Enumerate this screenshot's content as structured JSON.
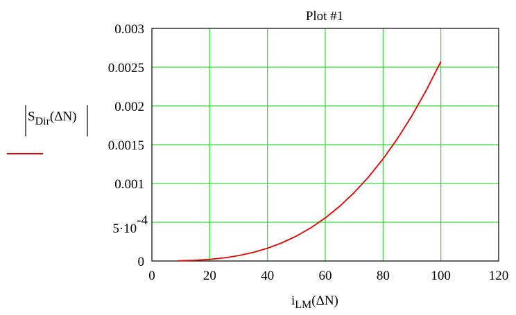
{
  "chart_data": {
    "type": "line",
    "title": "Plot #1",
    "xlabel": {
      "main": "i",
      "sub": "LM",
      "arg": "(ΔN)"
    },
    "ylabel": {
      "main": "S",
      "sub": "Dir",
      "arg": "(ΔN)"
    },
    "xlim": [
      0,
      120
    ],
    "ylim": [
      0,
      0.003
    ],
    "x_ticks": [
      0,
      20,
      40,
      60,
      80,
      100,
      120
    ],
    "x_tick_labels": [
      "0",
      "20",
      "40",
      "60",
      "80",
      "100",
      "120"
    ],
    "y_ticks": [
      0,
      0.0005,
      0.001,
      0.0015,
      0.002,
      0.0025,
      0.003
    ],
    "y_tick_labels": [
      "0",
      "5·10^-4",
      "0.001",
      "0.0015",
      "0.002",
      "0.0025",
      "0.003"
    ],
    "grid": true,
    "grid_color": "#33dd33",
    "series": [
      {
        "color": "#e00000",
        "x": [
          9,
          10,
          15,
          20,
          25,
          30,
          35,
          40,
          45,
          50,
          55,
          60,
          65,
          70,
          75,
          80,
          85,
          90,
          95,
          100
        ],
        "y": [
          1.9e-06,
          2.6e-06,
          8.7e-06,
          2.06e-05,
          4.02e-05,
          6.95e-05,
          0.0001103,
          0.0001646,
          0.0002344,
          0.0003215,
          0.0004279,
          0.0005556,
          0.0007064,
          0.0008823,
          0.0010852,
          0.001317,
          0.0015797,
          0.0018752,
          0.0022054,
          0.002572
        ]
      }
    ]
  }
}
